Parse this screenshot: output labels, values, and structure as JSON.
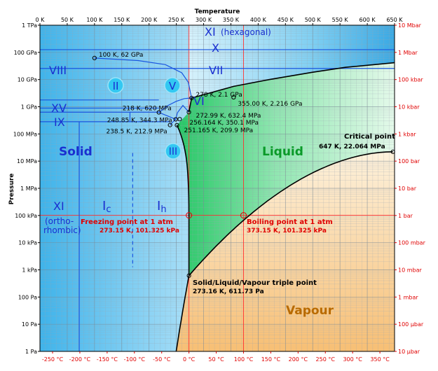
{
  "chart_data": {
    "type": "phase-diagram",
    "title": "",
    "x_top_label": "Temperature",
    "y_label": "Pressure",
    "x_top_ticks": [
      "0 K",
      "50 K",
      "100 K",
      "150 K",
      "200 K",
      "250 K",
      "300 K",
      "350 K",
      "400 K",
      "450 K",
      "500 K",
      "550 K",
      "600 K",
      "650 K"
    ],
    "x_bottom_ticks": [
      "-250 °C",
      "-200 °C",
      "-150 °C",
      "-100 °C",
      "-50 °C",
      "0 °C",
      "50 °C",
      "100 °C",
      "150 °C",
      "200 °C",
      "250 °C",
      "300 °C",
      "350 °C"
    ],
    "y_left_ticks": [
      "1 Pa",
      "10 Pa",
      "100 Pa",
      "1 kPa",
      "10 kPa",
      "100 kPa",
      "1 MPa",
      "10 MPa",
      "100 MPa",
      "1 GPa",
      "10 GPa",
      "100 GPa",
      "1 TPa"
    ],
    "y_right_ticks": [
      "10 µbar",
      "100 µbar",
      "1 mbar",
      "10 mbar",
      "100 mbar",
      "1 bar",
      "10 bar",
      "100 bar",
      "1 kbar",
      "10 kbar",
      "100 kbar",
      "1 Mbar",
      "10 Mbar"
    ],
    "xlim_K": [
      0,
      650
    ],
    "ylim_Pa_log10": [
      0,
      12
    ],
    "regions": {
      "solid": "Solid",
      "liquid": "Liquid",
      "vapour": "Vapour"
    },
    "phases": {
      "xi_hex": "XI",
      "xi_hex_sub": "(hexagonal)",
      "x": "X",
      "viii": "VIII",
      "vii": "VII",
      "vi": "VI",
      "xv": "XV",
      "ix": "IX",
      "ii": "II",
      "v": "V",
      "iii": "III",
      "xi_ortho": "XI",
      "xi_ortho_sub1": "(ortho-",
      "xi_ortho_sub2": "rhombic)",
      "ic_main": "I",
      "ic_sub": "c",
      "ih_main": "I",
      "ih_sub": "h"
    },
    "points": [
      {
        "T_K": 100,
        "log10P": 10.792,
        "label": "100 K, 62 GPa"
      },
      {
        "T_K": 278,
        "log10P": 9.322,
        "label": "278 K, 2.1 GPa"
      },
      {
        "T_K": 355,
        "log10P": 9.346,
        "label": "355.00 K, 2.216 GPa"
      },
      {
        "T_K": 218,
        "log10P": 8.792,
        "label": "218 K, 620 MPa"
      },
      {
        "T_K": 272.99,
        "log10P": 8.801,
        "label": "272.99 K, 632.4 MPa"
      },
      {
        "T_K": 248.85,
        "log10P": 8.537,
        "label": "248.85 K, 344.3 MPa"
      },
      {
        "T_K": 256.164,
        "log10P": 8.544,
        "label": "256.164 K, 350.1 MPa"
      },
      {
        "T_K": 238.5,
        "log10P": 8.328,
        "label": "238.5 K, 212.9 MPa"
      },
      {
        "T_K": 251.165,
        "log10P": 8.322,
        "label": "251.165 K, 209.9 MPa"
      },
      {
        "T_K": 647,
        "log10P": 7.344,
        "label": "647 K, 22.064 MPa"
      },
      {
        "T_K": 273.15,
        "log10P": 5.006,
        "label": "273.15 K, 101.325 kPa"
      },
      {
        "T_K": 373.15,
        "log10P": 5.006,
        "label": "373.15 K, 101.325 kPa"
      },
      {
        "T_K": 273.16,
        "log10P": 2.787,
        "label": "273.16 K, 611.73 Pa"
      }
    ],
    "annotations": {
      "critical_title": "Critical point",
      "critical_value": "647 K, 22.064 MPa",
      "freezing_title": "Freezing point at 1 atm",
      "freezing_value": "273.15 K, 101.325 kPa",
      "boiling_title": "Boiling point at 1 atm",
      "boiling_value": "373.15 K, 101.325 kPa",
      "triple_title": "Solid/Liquid/Vapour triple point",
      "triple_value": "273.16 K, 611.73 Pa"
    },
    "colors": {
      "solid": "#6ecbf0",
      "liquid": "#4ed88a",
      "vapour": "#f6c682",
      "boundary": "#000000",
      "ice_boundary": "#1a55e0",
      "reference_line": "#ff3030",
      "phase_label": "#1a2fd0",
      "liquid_label": "#0a9a28",
      "vapour_label": "#b86a00"
    }
  }
}
